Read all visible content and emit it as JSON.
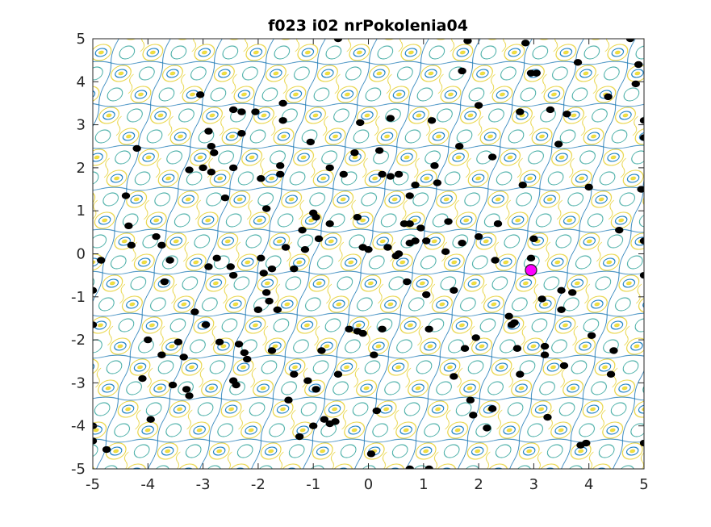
{
  "chart_data": {
    "type": "scatter",
    "title": "f023 i02 nrPokolenia04",
    "xlabel": "",
    "ylabel": "",
    "xlim": [
      -5,
      5
    ],
    "ylim": [
      -5,
      5
    ],
    "xticks": [
      -5,
      -4,
      -3,
      -2,
      -1,
      0,
      1,
      2,
      3,
      4,
      5
    ],
    "yticks": [
      -5,
      -4,
      -3,
      -2,
      -1,
      0,
      1,
      2,
      3,
      4,
      5
    ],
    "x_tick_labels": [
      "-5",
      "-4",
      "-3",
      "-2",
      "-1",
      "0",
      "1",
      "2",
      "3",
      "4",
      "5"
    ],
    "y_tick_labels": [
      "-5",
      "-4",
      "-3",
      "-2",
      "-1",
      "0",
      "1",
      "2",
      "3",
      "4",
      "5"
    ],
    "grid": false,
    "legend": "none",
    "background": "contour",
    "colors": {
      "population": "#000000",
      "best": "#ff00ff",
      "contour_low": "#0072bd",
      "contour_mid": "#2aa198",
      "contour_high": "#e6d030"
    },
    "series": [
      {
        "points": [
          [
            -5.0,
            -0.85
          ],
          [
            -4.85,
            -0.15
          ],
          [
            -5.0,
            -1.65
          ],
          [
            -5.0,
            -4.0
          ],
          [
            -5.0,
            -4.35
          ],
          [
            -4.75,
            -4.55
          ],
          [
            -4.4,
            1.35
          ],
          [
            -4.35,
            0.65
          ],
          [
            -4.3,
            0.2
          ],
          [
            -4.2,
            2.45
          ],
          [
            -4.1,
            -2.9
          ],
          [
            -4.0,
            -2.0
          ],
          [
            -3.95,
            -3.85
          ],
          [
            -3.85,
            0.4
          ],
          [
            -3.75,
            0.2
          ],
          [
            -3.75,
            -2.35
          ],
          [
            -3.7,
            -0.65
          ],
          [
            -3.6,
            -0.15
          ],
          [
            -3.55,
            -3.05
          ],
          [
            -3.45,
            -2.05
          ],
          [
            -3.35,
            -2.4
          ],
          [
            -3.3,
            -3.15
          ],
          [
            -3.25,
            -3.3
          ],
          [
            -3.25,
            1.95
          ],
          [
            -3.15,
            -1.35
          ],
          [
            -3.05,
            3.7
          ],
          [
            -3.0,
            2.0
          ],
          [
            -2.95,
            -1.65
          ],
          [
            -2.9,
            2.85
          ],
          [
            -2.9,
            -0.3
          ],
          [
            -2.85,
            2.5
          ],
          [
            -2.8,
            2.35
          ],
          [
            -2.85,
            1.9
          ],
          [
            -2.75,
            -0.1
          ],
          [
            -2.7,
            -2.05
          ],
          [
            -2.6,
            1.3
          ],
          [
            -2.45,
            3.35
          ],
          [
            -2.45,
            2.0
          ],
          [
            -2.5,
            -0.3
          ],
          [
            -2.45,
            -0.5
          ],
          [
            -2.45,
            -2.95
          ],
          [
            -2.4,
            -3.05
          ],
          [
            -2.35,
            -2.1
          ],
          [
            -2.3,
            3.3
          ],
          [
            -2.3,
            2.8
          ],
          [
            -2.25,
            -2.3
          ],
          [
            -2.2,
            -2.45
          ],
          [
            -2.05,
            3.3
          ],
          [
            -2.0,
            -1.3
          ],
          [
            -1.95,
            1.75
          ],
          [
            -1.95,
            -0.1
          ],
          [
            -1.9,
            -0.45
          ],
          [
            -1.85,
            1.05
          ],
          [
            -1.85,
            -0.9
          ],
          [
            -1.8,
            -1.1
          ],
          [
            -1.75,
            -2.25
          ],
          [
            -1.75,
            -0.35
          ],
          [
            -1.65,
            -1.3
          ],
          [
            -1.6,
            2.05
          ],
          [
            -1.6,
            1.85
          ],
          [
            -1.55,
            3.5
          ],
          [
            -1.55,
            3.1
          ],
          [
            -1.5,
            0.15
          ],
          [
            -1.45,
            -3.4
          ],
          [
            -1.35,
            -0.35
          ],
          [
            -1.35,
            -2.8
          ],
          [
            -1.25,
            -4.25
          ],
          [
            -1.2,
            0.55
          ],
          [
            -1.15,
            0.1
          ],
          [
            -1.1,
            -2.95
          ],
          [
            -1.05,
            2.6
          ],
          [
            -1.0,
            0.95
          ],
          [
            -1.0,
            -4.0
          ],
          [
            -0.95,
            -3.15
          ],
          [
            -0.95,
            0.85
          ],
          [
            -0.9,
            0.35
          ],
          [
            -0.85,
            -2.25
          ],
          [
            -0.8,
            -3.85
          ],
          [
            -0.7,
            -3.95
          ],
          [
            -0.7,
            2.0
          ],
          [
            -0.7,
            0.7
          ],
          [
            -0.6,
            -3.9
          ],
          [
            -0.55,
            -2.8
          ],
          [
            -0.55,
            5.0
          ],
          [
            -0.45,
            1.85
          ],
          [
            -0.35,
            -1.75
          ],
          [
            -0.25,
            2.35
          ],
          [
            -0.2,
            -1.8
          ],
          [
            -0.2,
            0.85
          ],
          [
            -0.1,
            -1.85
          ],
          [
            -0.15,
            3.05
          ],
          [
            -0.1,
            0.15
          ],
          [
            0.0,
            0.1
          ],
          [
            0.05,
            -4.65
          ],
          [
            0.1,
            -2.35
          ],
          [
            0.15,
            -3.65
          ],
          [
            0.2,
            2.4
          ],
          [
            0.25,
            1.85
          ],
          [
            0.25,
            -1.75
          ],
          [
            0.35,
            0.15
          ],
          [
            0.4,
            3.15
          ],
          [
            0.4,
            1.8
          ],
          [
            0.55,
            1.85
          ],
          [
            0.5,
            -0.05
          ],
          [
            0.55,
            0.0
          ],
          [
            0.65,
            0.7
          ],
          [
            0.7,
            -0.65
          ],
          [
            0.75,
            1.35
          ],
          [
            0.75,
            0.7
          ],
          [
            0.75,
            0.25
          ],
          [
            0.75,
            -5.0
          ],
          [
            0.85,
            0.3
          ],
          [
            0.85,
            1.6
          ],
          [
            0.95,
            0.6
          ],
          [
            1.05,
            0.3
          ],
          [
            1.05,
            -0.95
          ],
          [
            1.1,
            -1.75
          ],
          [
            1.1,
            -5.0
          ],
          [
            1.15,
            3.1
          ],
          [
            1.2,
            2.05
          ],
          [
            1.25,
            1.65
          ],
          [
            1.4,
            0.05
          ],
          [
            1.45,
            0.75
          ],
          [
            1.55,
            -0.85
          ],
          [
            1.55,
            -2.85
          ],
          [
            1.65,
            2.5
          ],
          [
            1.7,
            4.25
          ],
          [
            1.7,
            0.25
          ],
          [
            1.75,
            -2.2
          ],
          [
            1.8,
            4.95
          ],
          [
            1.85,
            -3.4
          ],
          [
            1.9,
            -3.75
          ],
          [
            1.95,
            -1.95
          ],
          [
            2.0,
            0.4
          ],
          [
            2.0,
            3.45
          ],
          [
            2.15,
            -4.05
          ],
          [
            2.25,
            2.25
          ],
          [
            2.25,
            -3.6
          ],
          [
            2.3,
            -0.15
          ],
          [
            2.35,
            0.7
          ],
          [
            2.55,
            -1.45
          ],
          [
            2.6,
            -1.65
          ],
          [
            2.65,
            -1.6
          ],
          [
            2.7,
            -2.2
          ],
          [
            2.75,
            -2.8
          ],
          [
            2.75,
            3.3
          ],
          [
            2.8,
            1.6
          ],
          [
            2.85,
            4.9
          ],
          [
            2.95,
            -0.1
          ],
          [
            2.95,
            4.2
          ],
          [
            3.0,
            0.35
          ],
          [
            3.05,
            4.2
          ],
          [
            3.15,
            -1.05
          ],
          [
            3.2,
            -2.15
          ],
          [
            3.2,
            -2.35
          ],
          [
            3.25,
            -3.8
          ],
          [
            3.3,
            3.35
          ],
          [
            3.45,
            2.55
          ],
          [
            3.5,
            -0.85
          ],
          [
            3.5,
            -1.3
          ],
          [
            3.55,
            -2.6
          ],
          [
            3.6,
            3.25
          ],
          [
            3.7,
            -0.9
          ],
          [
            3.8,
            4.45
          ],
          [
            3.85,
            -4.45
          ],
          [
            3.95,
            -4.4
          ],
          [
            4.0,
            1.55
          ],
          [
            4.05,
            -1.9
          ],
          [
            4.35,
            3.65
          ],
          [
            4.4,
            -2.8
          ],
          [
            4.45,
            -2.25
          ],
          [
            4.55,
            0.55
          ],
          [
            4.75,
            5.0
          ],
          [
            4.85,
            3.95
          ],
          [
            4.9,
            4.4
          ],
          [
            4.95,
            1.5
          ],
          [
            5.0,
            2.7
          ],
          [
            5.0,
            -4.4
          ],
          [
            5.0,
            3.1
          ],
          [
            5.0,
            0.3
          ],
          [
            5.0,
            -0.5
          ]
        ]
      },
      {
        "points": [
          [
            2.95,
            -0.38
          ]
        ]
      }
    ]
  }
}
